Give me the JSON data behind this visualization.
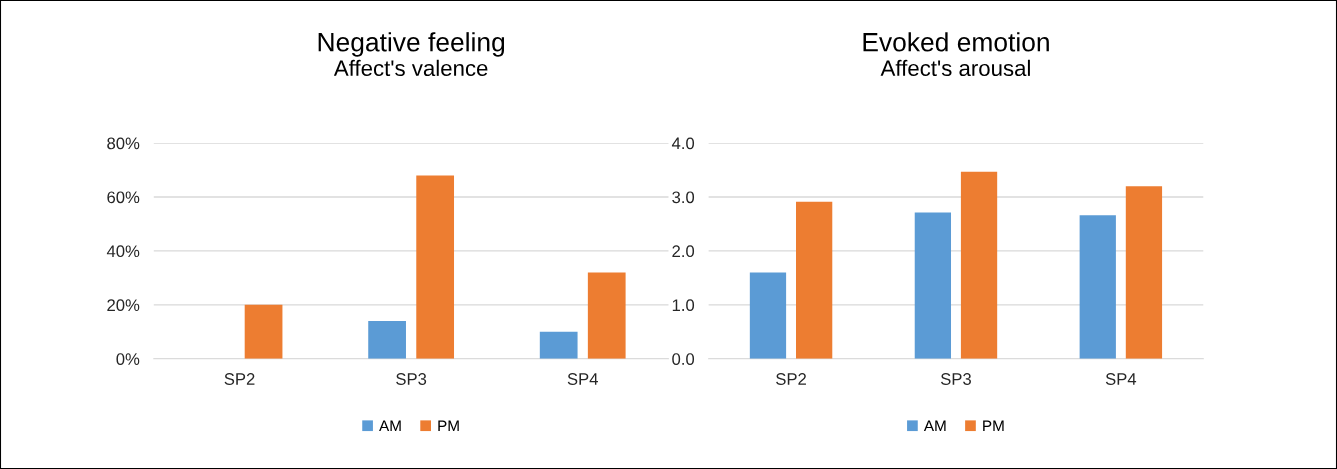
{
  "chart_data": [
    {
      "type": "bar",
      "title": "Negative feeling",
      "subtitle": "Affect's valence",
      "categories": [
        "SP2",
        "SP3",
        "SP4"
      ],
      "series": [
        {
          "name": "AM",
          "color": "#5b9bd5",
          "values": [
            0,
            14,
            10
          ]
        },
        {
          "name": "PM",
          "color": "#ed7d31",
          "values": [
            20,
            68,
            32
          ]
        }
      ],
      "ylim": [
        0,
        80
      ],
      "yticks": [
        {
          "value": 0,
          "label": "0%"
        },
        {
          "value": 20,
          "label": "20%"
        },
        {
          "value": 40,
          "label": "40%"
        },
        {
          "value": 60,
          "label": "60%"
        },
        {
          "value": 80,
          "label": "80%"
        }
      ],
      "grid": "y",
      "legend": "bottom"
    },
    {
      "type": "bar",
      "title": "Evoked emotion",
      "subtitle": "Affect's arousal",
      "categories": [
        "SP2",
        "SP3",
        "SP4"
      ],
      "series": [
        {
          "name": "AM",
          "color": "#5b9bd5",
          "values": [
            1.6,
            2.71,
            2.66
          ]
        },
        {
          "name": "PM",
          "color": "#ed7d31",
          "values": [
            2.91,
            3.47,
            3.2
          ]
        }
      ],
      "ylim": [
        0,
        4
      ],
      "yticks": [
        {
          "value": 0,
          "label": "0.0"
        },
        {
          "value": 1,
          "label": "1.0"
        },
        {
          "value": 2,
          "label": "2.0"
        },
        {
          "value": 3,
          "label": "3.0"
        },
        {
          "value": 4,
          "label": "4.0"
        }
      ],
      "grid": "y",
      "legend": "bottom"
    }
  ]
}
